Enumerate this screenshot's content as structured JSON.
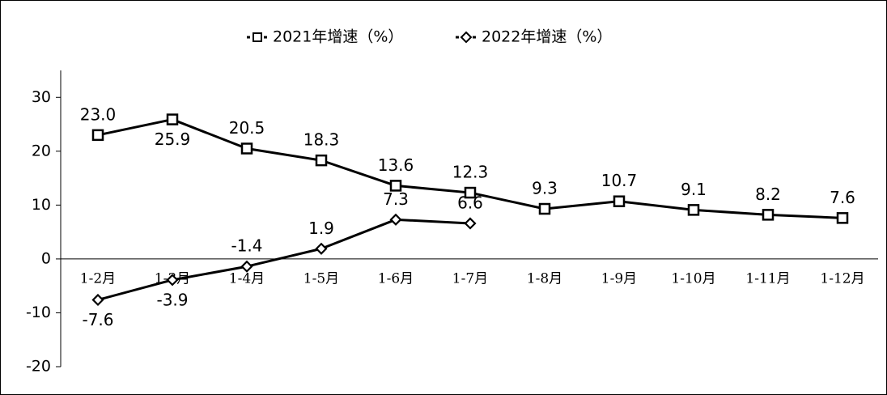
{
  "chart_data": {
    "type": "line",
    "categories": [
      "1-2月",
      "1-3月",
      "1-4月",
      "1-5月",
      "1-6月",
      "1-7月",
      "1-8月",
      "1-9月",
      "1-10月",
      "1-11月",
      "1-12月"
    ],
    "series": [
      {
        "name": "2021年增速（%）",
        "color": "#000000",
        "marker": "square",
        "values": [
          23.0,
          25.9,
          20.5,
          18.3,
          13.6,
          12.3,
          9.3,
          10.7,
          9.1,
          8.2,
          7.6
        ],
        "value_labels": [
          "23.0",
          "25.9",
          "20.5",
          "18.3",
          "13.6",
          "12.3",
          "9.3",
          "10.7",
          "9.1",
          "8.2",
          "7.6"
        ]
      },
      {
        "name": "2022年增速（%）",
        "color": "#000000",
        "marker": "diamond",
        "values": [
          -7.6,
          -3.9,
          -1.4,
          1.9,
          7.3,
          6.6,
          null,
          null,
          null,
          null,
          null
        ],
        "value_labels": [
          "-7.6",
          "-3.9",
          "-1.4",
          "1.9",
          "7.3",
          "6.6",
          null,
          null,
          null,
          null,
          null
        ]
      }
    ],
    "ylim": [
      -20,
      35
    ],
    "yticks": [
      -20,
      -10,
      0,
      10,
      20,
      30
    ],
    "legend": "top"
  }
}
